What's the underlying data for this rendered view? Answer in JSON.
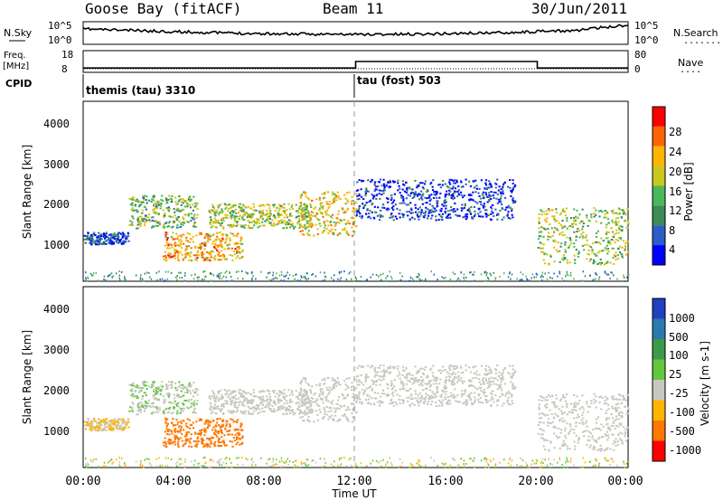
{
  "header": {
    "station": "Goose Bay (fitACF)",
    "beam": "Beam 11",
    "date": "30/Jun/2011"
  },
  "noise_panel": {
    "left_label": "N.Sky",
    "right_label": "N.Search",
    "left_ticks": [
      "10^5",
      "10^0"
    ],
    "right_ticks": [
      "10^5",
      "10^0"
    ],
    "legend_dots": "........"
  },
  "freq_panel": {
    "left_label_line1": "Freq.",
    "left_label_line2": "[MHz]",
    "right_label": "Nave",
    "left_ticks": [
      "18",
      "8"
    ],
    "right_ticks": [
      "80",
      "0"
    ],
    "legend_dots": "...."
  },
  "cpid": {
    "label": "CPID",
    "segments": [
      {
        "name": "themis (tau) 3310",
        "start_hour": 0
      },
      {
        "name": "tau (fost) 503",
        "start_hour": 12
      }
    ]
  },
  "power_panel": {
    "ylabel": "Slant Range [km]",
    "yticks": [
      "1000",
      "2000",
      "3000",
      "4000"
    ],
    "colorbar_label": "Power [dB]",
    "colorbar_ticks": [
      "4",
      "8",
      "12",
      "16",
      "20",
      "24",
      "28"
    ],
    "colors": [
      "#0000ff",
      "#2a5dc8",
      "#3d8a55",
      "#4bb85a",
      "#c8c81e",
      "#ffb400",
      "#ff6400",
      "#ff0000"
    ]
  },
  "velocity_panel": {
    "ylabel": "Slant Range [km]",
    "yticks": [
      "1000",
      "2000",
      "3000",
      "4000"
    ],
    "colorbar_label": "Velocity [m s-1]",
    "colorbar_ticks": [
      "1000",
      "500",
      "100",
      "25",
      "-25",
      "-100",
      "-500",
      "-1000"
    ],
    "colors": [
      "#2040c0",
      "#2a7ab0",
      "#3c9a48",
      "#64c83c",
      "#c8c8c0",
      "#ffb400",
      "#ff7800",
      "#ff0000"
    ]
  },
  "x_axis": {
    "label": "Time UT",
    "ticks": [
      "00:00",
      "04:00",
      "08:00",
      "12:00",
      "16:00",
      "20:00",
      "00:00"
    ]
  },
  "chart_data": {
    "type": "heatmap",
    "title": "Goose Bay (fitACF)",
    "subtitle": "Beam 11  30/Jun/2011",
    "xlabel": "Time UT",
    "ylabel": "Slant Range [km]",
    "xlim_hours": [
      0,
      24
    ],
    "ylim_km": [
      180,
      4600
    ],
    "frequency_mhz": [
      {
        "start_hour": 0,
        "end_hour": 12,
        "value": 10
      },
      {
        "start_hour": 12,
        "end_hour": 20,
        "value": 13
      },
      {
        "start_hour": 20,
        "end_hour": 24,
        "value": 10
      }
    ],
    "echo_regions": [
      {
        "t0": 0.0,
        "t1": 2.0,
        "r0": 1100,
        "r1": 1400,
        "power": 6,
        "velocity": -25
      },
      {
        "t0": 2.0,
        "t1": 5.0,
        "r0": 1500,
        "r1": 2300,
        "power": 14,
        "velocity": 20
      },
      {
        "t0": 3.5,
        "t1": 7.0,
        "r0": 700,
        "r1": 1400,
        "power": 22,
        "velocity": -300
      },
      {
        "t0": 5.5,
        "t1": 10.0,
        "r0": 1500,
        "r1": 2100,
        "power": 16,
        "velocity": 0
      },
      {
        "t0": 9.5,
        "t1": 12.0,
        "r0": 1300,
        "r1": 2400,
        "power": 20,
        "velocity": 0
      },
      {
        "t0": 12.0,
        "t1": 19.0,
        "r0": 1700,
        "r1": 2700,
        "power": 4,
        "velocity": 0
      },
      {
        "t0": 20.0,
        "t1": 24.0,
        "r0": 600,
        "r1": 2000,
        "power": 16,
        "velocity": 0
      }
    ]
  }
}
